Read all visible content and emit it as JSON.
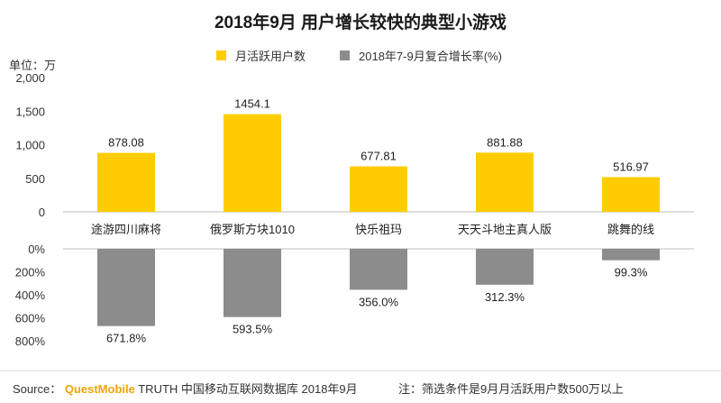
{
  "chart_data": {
    "type": "bar",
    "title": "2018年9月 用户增长较快的典型小游戏",
    "unit_label": "单位：万",
    "categories": [
      "途游四川麻将",
      "俄罗斯方块1010",
      "快乐祖玛",
      "天天斗地主真人版",
      "跳舞的线"
    ],
    "series": [
      {
        "name": "月活跃用户数",
        "color": "#FFCC00",
        "values": [
          878.08,
          1454.1,
          677.81,
          881.88,
          516.97
        ],
        "value_labels": [
          "878.08",
          "1454.1",
          "677.81",
          "881.88",
          "516.97"
        ]
      },
      {
        "name": "2018年7-9月复合增长率(%)",
        "color": "#8C8C8C",
        "values": [
          671.8,
          593.5,
          356.0,
          312.3,
          99.3
        ],
        "value_labels": [
          "671.8%",
          "593.5%",
          "356.0%",
          "312.3%",
          "99.3%"
        ]
      }
    ],
    "upper_axis": {
      "ylim": [
        0,
        2000
      ],
      "ticks": [
        0,
        500,
        1000,
        1500,
        2000
      ],
      "tick_labels": [
        "0",
        "500",
        "1,000",
        "1,500",
        "2,000"
      ]
    },
    "lower_axis": {
      "ylim": [
        0,
        800
      ],
      "ticks": [
        0,
        200,
        400,
        600,
        800
      ],
      "tick_labels": [
        "0%",
        "200%",
        "400%",
        "600%",
        "800%"
      ],
      "inverted": true
    },
    "grid": false
  },
  "footer": {
    "source_prefix": "Source：",
    "brand": "QuestMobile",
    "source_rest": "TRUTH 中国移动互联网数据库 2018年9月",
    "note": "注：筛选条件是9月月活跃用户数500万以上"
  }
}
